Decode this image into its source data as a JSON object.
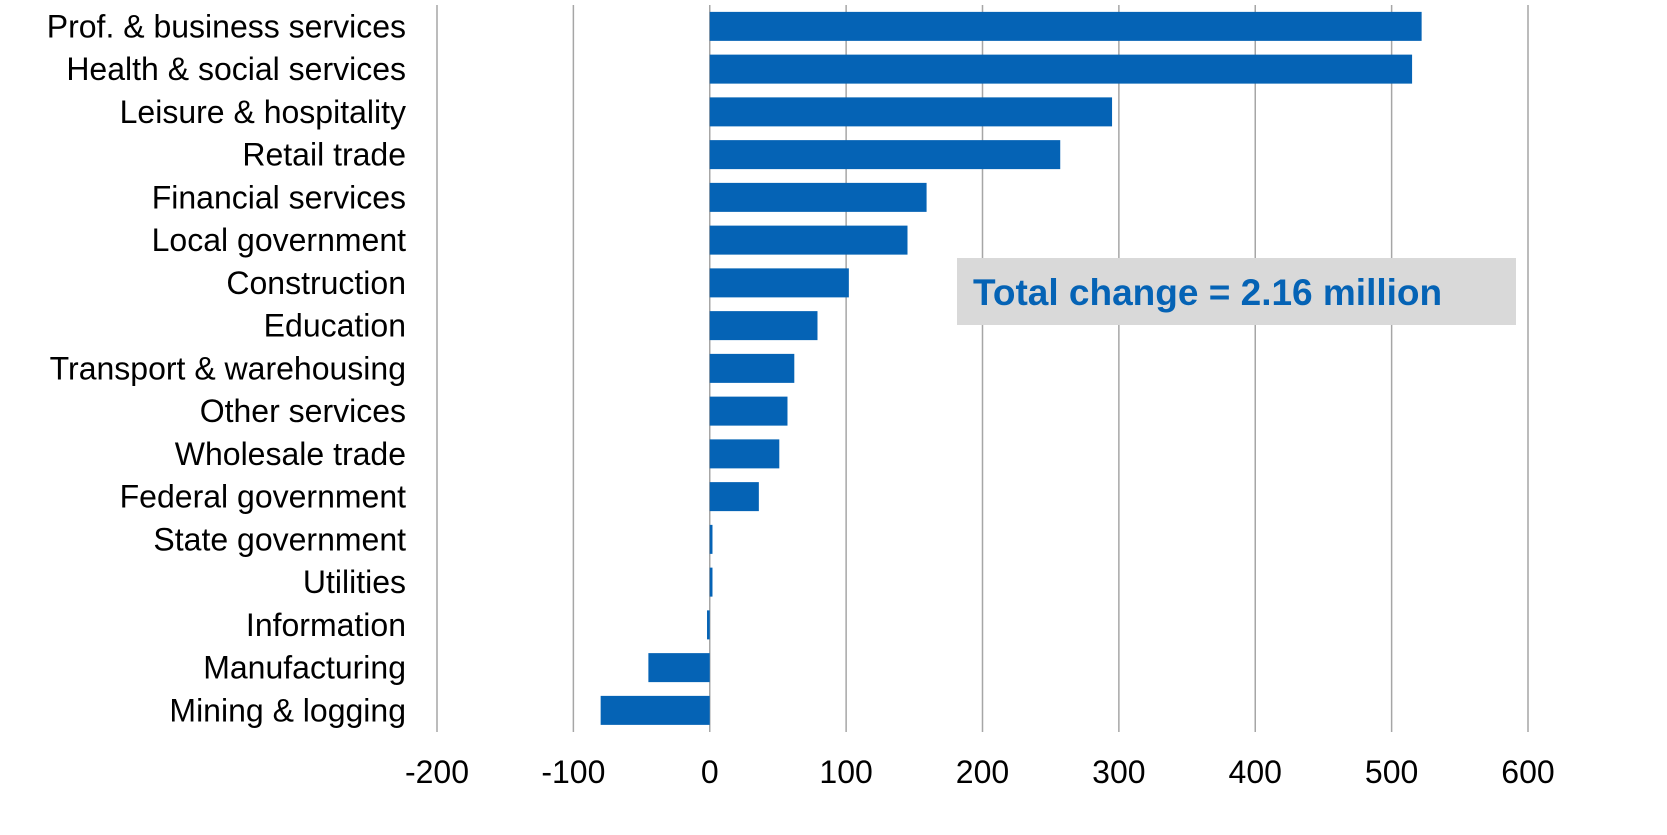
{
  "chart_data": {
    "type": "bar",
    "orientation": "horizontal",
    "categories": [
      "Prof. & business services",
      "Health & social services",
      "Leisure & hospitality",
      "Retail trade",
      "Financial services",
      "Local government",
      "Construction",
      "Education",
      "Transport & warehousing",
      "Other services",
      "Wholesale trade",
      "Federal government",
      "State government",
      "Utilities",
      "Information",
      "Manufacturing",
      "Mining & logging"
    ],
    "values": [
      522,
      515,
      295,
      257,
      159,
      145,
      102,
      79,
      62,
      57,
      51,
      36,
      2,
      2,
      -2,
      -45,
      -80
    ],
    "xlim": [
      -200,
      600
    ],
    "xticks": [
      "-200",
      "-100",
      "0",
      "100",
      "200",
      "300",
      "400",
      "500",
      "600"
    ],
    "xtick_values": [
      -200,
      -100,
      0,
      100,
      200,
      300,
      400,
      500,
      600
    ],
    "title": "",
    "xlabel": "",
    "ylabel": "",
    "grid": "vertical",
    "legend": "none",
    "bar_color": "#0563b5",
    "grid_color": "#a6a6a6",
    "annotation": {
      "text": "Total change = 2.16 million",
      "text_color": "#0563b5",
      "box_color": "#d9d9d9"
    }
  }
}
